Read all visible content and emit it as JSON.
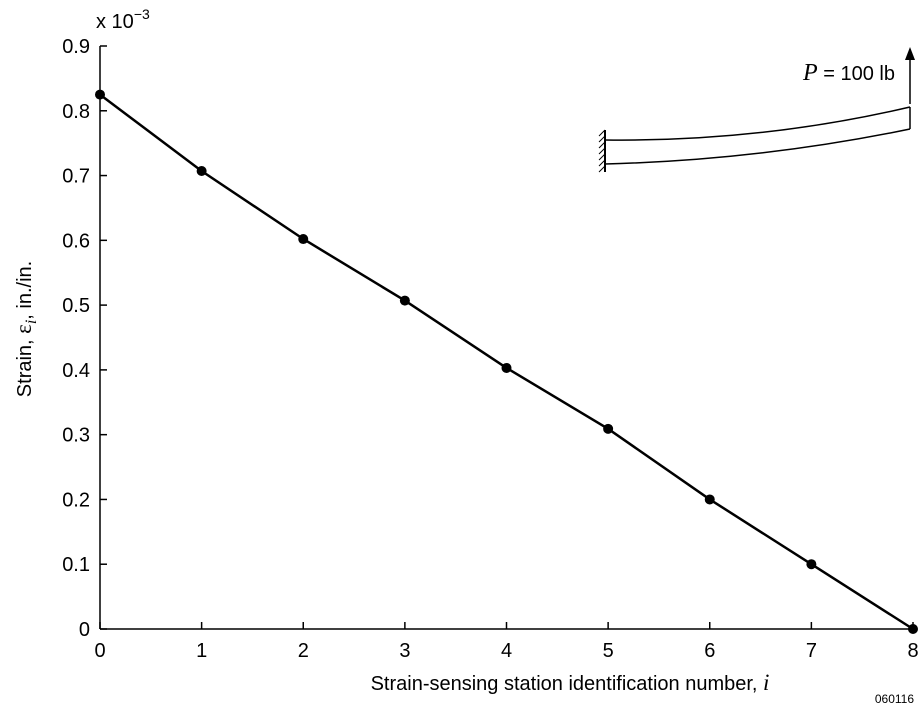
{
  "chart_data": {
    "type": "line",
    "multiplier": {
      "base": "x 10",
      "exponent": "−3"
    },
    "xlabel": {
      "text": "Strain-sensing station identification number, ",
      "symbol": "i"
    },
    "ylabel": {
      "prefix": "Strain, ",
      "symbol": "ε",
      "subscript": "i",
      "suffix": ", in./in."
    },
    "xlim": [
      0,
      8
    ],
    "ylim": [
      0,
      0.9
    ],
    "x_ticks": [
      "0",
      "1",
      "2",
      "3",
      "4",
      "5",
      "6",
      "7",
      "8"
    ],
    "y_ticks": [
      "0",
      "0.1",
      "0.2",
      "0.3",
      "0.4",
      "0.5",
      "0.6",
      "0.7",
      "0.8",
      "0.9"
    ],
    "grid": false,
    "series": [
      {
        "x": [
          0,
          1,
          2,
          3,
          4,
          5,
          6,
          7,
          8
        ],
        "values": [
          0.825,
          0.707,
          0.602,
          0.507,
          0.403,
          0.309,
          0.2,
          0.1,
          0.0
        ],
        "marker": "filled-circle",
        "color": "#000000"
      }
    ],
    "annotations": {
      "load": {
        "symbol": "P",
        "text": " = 100 lb"
      },
      "figure_id": "060116"
    }
  }
}
